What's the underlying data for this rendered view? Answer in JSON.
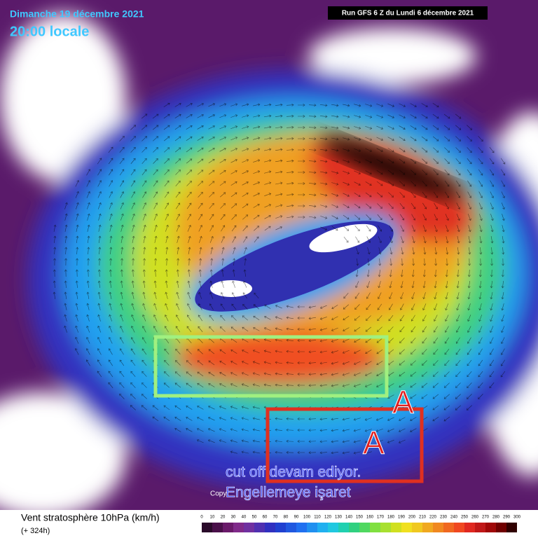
{
  "header": {
    "date": "Dimanche 19 décembre 2021",
    "time": "20:00 locale",
    "run": "Run GFS 6 Z du Lundi 6 décembre 2021"
  },
  "annotations": {
    "marker_1": "A",
    "marker_2": "A",
    "line_1": "cut off devam ediyor.",
    "line_2": "Engellemeye işaret",
    "copyright": "Copy"
  },
  "footer": {
    "title": "Vent stratosphère 10hPa (km/h)",
    "subtitle": "(+ 324h)"
  },
  "legend": {
    "ticks": [
      0,
      10,
      20,
      30,
      40,
      50,
      60,
      70,
      80,
      90,
      100,
      110,
      120,
      130,
      140,
      150,
      160,
      170,
      180,
      190,
      200,
      210,
      220,
      230,
      240,
      250,
      260,
      270,
      280,
      290,
      300
    ],
    "colors": [
      "#2a0a2a",
      "#4a104a",
      "#6a1a6a",
      "#802a8a",
      "#7030a0",
      "#5030b0",
      "#3030c0",
      "#2040d0",
      "#2058e0",
      "#2070f0",
      "#2090f0",
      "#20b0f0",
      "#20c8e0",
      "#20d0b0",
      "#30d080",
      "#50d860",
      "#80e040",
      "#a8e030",
      "#d0e020",
      "#f0e020",
      "#f0c820",
      "#f0a820",
      "#f08820",
      "#f06820",
      "#f04820",
      "#e02820",
      "#c01818",
      "#a00808",
      "#700000",
      "#300000"
    ]
  }
}
